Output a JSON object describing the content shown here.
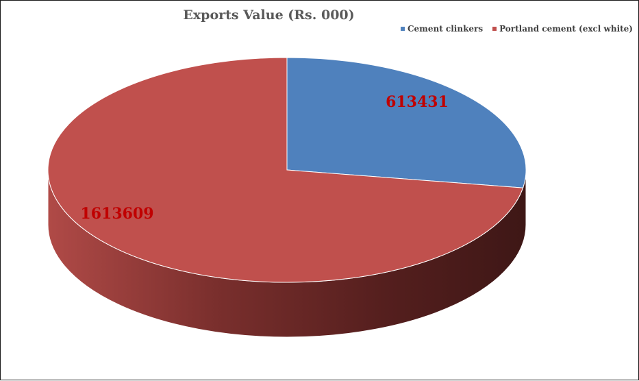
{
  "chart_data": {
    "type": "pie",
    "title": "Exports Value (Rs. 000)",
    "categories": [
      "Cement clinkers",
      "Portland cement (excl white)"
    ],
    "values": [
      613431,
      1613609
    ],
    "data_labels": [
      "613431",
      "1613609"
    ],
    "legend_position": "top-right",
    "three_d": true
  },
  "colors": {
    "Cement clinkers": "#4f81bd",
    "Portland cement (excl white)": "#c0504d",
    "label": "#c00000"
  }
}
